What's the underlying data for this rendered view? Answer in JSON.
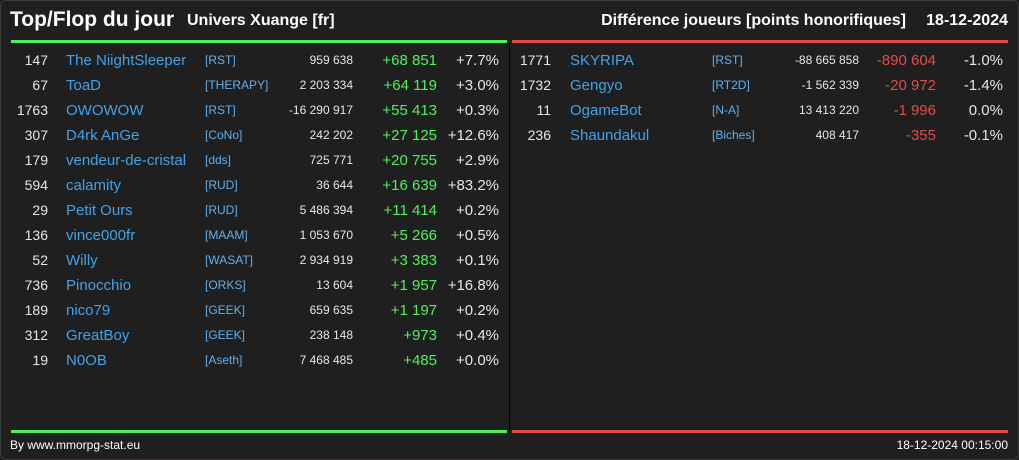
{
  "header": {
    "title": "Top/Flop du jour",
    "server": "Univers Xuange [fr]",
    "type": "Différence joueurs [points honorifiques]",
    "date": "18-12-2024"
  },
  "colors": {
    "up": "#4cf25a",
    "down": "#e14b4b",
    "link": "#3fa3ea"
  },
  "top": [
    {
      "rank": "147",
      "name": "The NiightSleeper",
      "ally": "[RST]",
      "points": "959 638",
      "diff": "+68 851",
      "pct": "+7.7%"
    },
    {
      "rank": "67",
      "name": "ToaD",
      "ally": "[THERAPY]",
      "points": "2 203 334",
      "diff": "+64 119",
      "pct": "+3.0%"
    },
    {
      "rank": "1763",
      "name": "OWOWOW",
      "ally": "[RST]",
      "points": "-16 290 917",
      "diff": "+55 413",
      "pct": "+0.3%"
    },
    {
      "rank": "307",
      "name": "D4rk AnGe",
      "ally": "[CoNo]",
      "points": "242 202",
      "diff": "+27 125",
      "pct": "+12.6%"
    },
    {
      "rank": "179",
      "name": "vendeur-de-cristal",
      "ally": "[dds]",
      "points": "725 771",
      "diff": "+20 755",
      "pct": "+2.9%"
    },
    {
      "rank": "594",
      "name": "calamity",
      "ally": "[RUD]",
      "points": "36 644",
      "diff": "+16 639",
      "pct": "+83.2%"
    },
    {
      "rank": "29",
      "name": "Petit Ours",
      "ally": "[RUD]",
      "points": "5 486 394",
      "diff": "+11 414",
      "pct": "+0.2%"
    },
    {
      "rank": "136",
      "name": "vince000fr",
      "ally": "[MAAM]",
      "points": "1 053 670",
      "diff": "+5 266",
      "pct": "+0.5%"
    },
    {
      "rank": "52",
      "name": "Willy",
      "ally": "[WASAT]",
      "points": "2 934 919",
      "diff": "+3 383",
      "pct": "+0.1%"
    },
    {
      "rank": "736",
      "name": "Pinocchio",
      "ally": "[ORKS]",
      "points": "13 604",
      "diff": "+1 957",
      "pct": "+16.8%"
    },
    {
      "rank": "189",
      "name": "nico79",
      "ally": "[GEEK]",
      "points": "659 635",
      "diff": "+1 197",
      "pct": "+0.2%"
    },
    {
      "rank": "312",
      "name": "GreatBoy",
      "ally": "[GEEK]",
      "points": "238 148",
      "diff": "+973",
      "pct": "+0.4%"
    },
    {
      "rank": "19",
      "name": "N0OB",
      "ally": "[Aseth]",
      "points": "7 468 485",
      "diff": "+485",
      "pct": "+0.0%"
    }
  ],
  "flop": [
    {
      "rank": "1771",
      "name": "SKYRIPA",
      "ally": "[RST]",
      "points": "-88 665 858",
      "diff": "-890 604",
      "pct": "-1.0%"
    },
    {
      "rank": "1732",
      "name": "Gengyo",
      "ally": "[RT2D]",
      "points": "-1 562 339",
      "diff": "-20 972",
      "pct": "-1.4%"
    },
    {
      "rank": "11",
      "name": "OgameBot",
      "ally": "[N-A]",
      "points": "13 413 220",
      "diff": "-1 996",
      "pct": "0.0%"
    },
    {
      "rank": "236",
      "name": "Shaundakul",
      "ally": "[Biches]",
      "points": "408 417",
      "diff": "-355",
      "pct": "-0.1%"
    }
  ],
  "footer": {
    "credit": "By www.mmorpg-stat.eu",
    "timestamp": "18-12-2024 00:15:00"
  }
}
